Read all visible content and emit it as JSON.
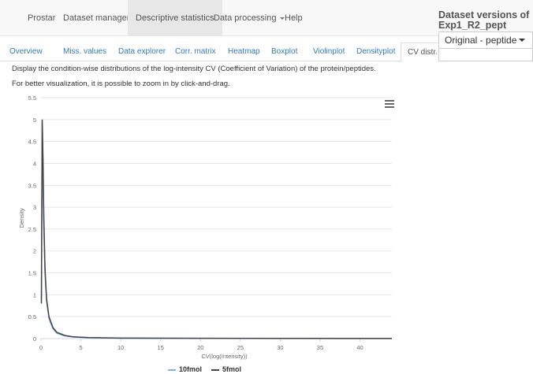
{
  "navbar": {
    "items": [
      {
        "label": "Prostar"
      },
      {
        "label": "Dataset manager"
      },
      {
        "label": "Descriptive statistics"
      },
      {
        "label": "Data processing"
      },
      {
        "label": "Help"
      }
    ],
    "versions_title": "Dataset versions of Exp1_R2_pept",
    "versions_selected": "Original - peptide"
  },
  "tabs": [
    {
      "label": "Overview"
    },
    {
      "label": "Miss. values"
    },
    {
      "label": "Data explorer"
    },
    {
      "label": "Corr. matrix"
    },
    {
      "label": "Heatmap"
    },
    {
      "label": "Boxplot"
    },
    {
      "label": "Violinplot"
    },
    {
      "label": "Densityplot"
    },
    {
      "label": "CV distr."
    }
  ],
  "description": {
    "line1": "Display the condition-wise distributions of the log-intensity CV (Coefficient of Variation) of the protein/peptides.",
    "line2": "For better visualization, it is possible to zoom in by click-and-drag."
  },
  "colors": {
    "series_10fmol": "#7cb5ec",
    "series_5fmol": "#434348",
    "link": "#337ab7"
  },
  "chart_data": {
    "type": "line",
    "xlabel": "CV(log(Intensity))",
    "ylabel": "Density",
    "xlim": [
      0,
      44
    ],
    "ylim": [
      0,
      5.5
    ],
    "x_ticks": [
      "0",
      "5",
      "10",
      "15",
      "20",
      "25",
      "30",
      "35",
      "40"
    ],
    "y_ticks": [
      "0",
      "0.5",
      "1",
      "1.5",
      "2",
      "2.5",
      "3",
      "3.5",
      "4",
      "4.5",
      "5",
      "5.5"
    ],
    "legend_position": "bottom-center",
    "series": [
      {
        "name": "10fmol",
        "x": [
          0.05,
          0.15,
          0.25,
          0.35,
          0.5,
          0.7,
          1.0,
          1.5,
          2.0,
          3.0,
          4.0,
          6.0,
          10.0,
          20.0,
          30.0,
          40.0,
          44.0
        ],
        "y": [
          0.9,
          4.9,
          3.9,
          2.6,
          1.5,
          0.85,
          0.45,
          0.22,
          0.12,
          0.06,
          0.035,
          0.02,
          0.01,
          0.005,
          0.003,
          0.002,
          0.002
        ]
      },
      {
        "name": "5fmol",
        "x": [
          0.05,
          0.15,
          0.25,
          0.35,
          0.5,
          0.7,
          1.0,
          1.5,
          2.0,
          3.0,
          4.0,
          6.0,
          10.0,
          20.0,
          30.0,
          40.0,
          44.0
        ],
        "y": [
          0.8,
          5.0,
          4.1,
          2.8,
          1.6,
          0.9,
          0.5,
          0.25,
          0.14,
          0.07,
          0.04,
          0.022,
          0.012,
          0.006,
          0.004,
          0.003,
          0.002
        ]
      }
    ]
  }
}
